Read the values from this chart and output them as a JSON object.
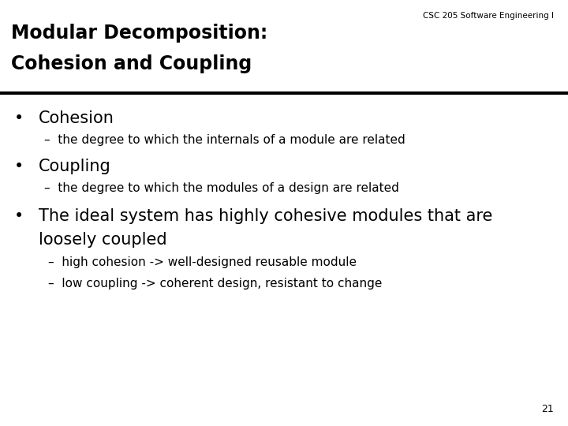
{
  "header_label": "CSC 205 Software Engineering I",
  "title_line1": "Modular Decomposition:",
  "title_line2": "Cohesion and Coupling",
  "bg_color": "#ffffff",
  "title_color": "#000000",
  "header_color": "#000000",
  "body_color": "#000000",
  "page_number": "21",
  "bullet1_main": "Cohesion",
  "bullet1_sub": "–  the degree to which the internals of a module are related",
  "bullet2_main": "Coupling",
  "bullet2_sub": "–  the degree to which the modules of a design are related",
  "bullet3_main_line1": "The ideal system has highly cohesive modules that are",
  "bullet3_main_line2": "loosely coupled",
  "bullet3_sub1": "–  high cohesion -> well-designed reusable module",
  "bullet3_sub2": "–  low coupling -> coherent design, resistant to change",
  "title_fontsize": 17,
  "header_fontsize": 7.5,
  "bullet_main_fontsize": 15,
  "bullet_sub_fontsize": 11,
  "page_num_fontsize": 9
}
